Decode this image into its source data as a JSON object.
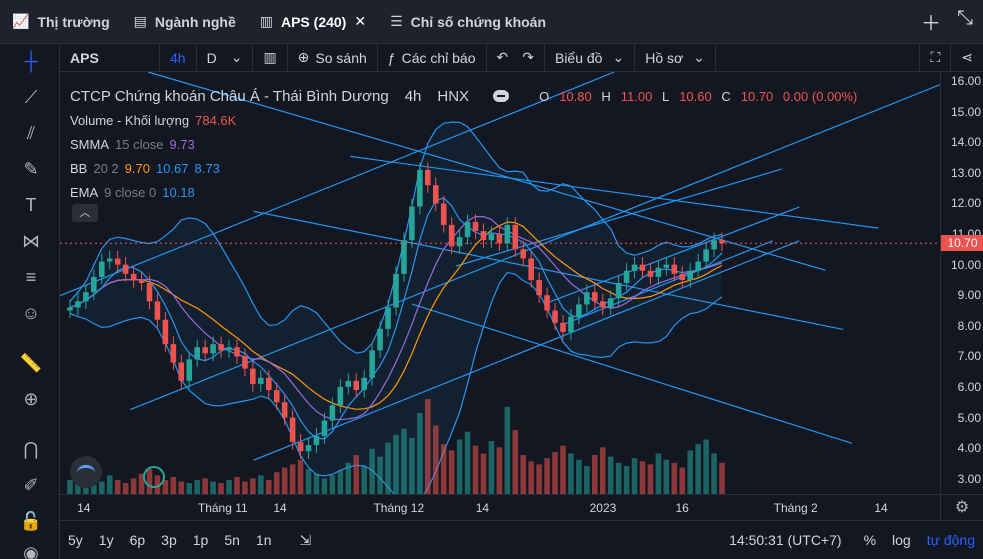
{
  "tabs": [
    {
      "label": "Thị trường",
      "icon": "chart-line-icon",
      "active": false
    },
    {
      "label": "Ngành nghề",
      "icon": "list-box-icon",
      "active": false
    },
    {
      "label": "APS (240)",
      "icon": "candles-icon",
      "active": true
    },
    {
      "label": "Chỉ số chứng khoán",
      "icon": "menu-icon",
      "active": false
    }
  ],
  "toolbar": {
    "symbol": "APS",
    "interval": "4h",
    "interval_alt": "D",
    "compare": "So sánh",
    "indicators": "Các chỉ báo",
    "chart_type": "Biểu đồ",
    "profile": "Hồ sơ"
  },
  "legend": {
    "name": "CTCP Chứng khoán Châu Á - Thái Bình Dương",
    "interval": "4h",
    "exchange": "HNX",
    "o_label": "O",
    "o": "10.80",
    "h_label": "H",
    "h": "11.00",
    "l_label": "L",
    "l": "10.60",
    "c_label": "C",
    "c": "10.70",
    "change": "0.00 (0.00%)",
    "volume_label": "Volume - Khối lượng",
    "volume": "784.6K",
    "smma_label": "SMMA",
    "smma_params": "15 close",
    "smma": "9.73",
    "bb_label": "BB",
    "bb_params": "20 2",
    "bb_mid": "9.70",
    "bb_up": "10.67",
    "bb_low": "8.73",
    "ema_label": "EMA",
    "ema_params": "9 close 0",
    "ema": "10.18"
  },
  "price_axis": {
    "ticks": [
      "16.00",
      "15.00",
      "14.00",
      "13.00",
      "12.00",
      "11.00",
      "10.00",
      "9.00",
      "8.00",
      "7.00",
      "6.00",
      "5.00",
      "4.00",
      "3.00"
    ],
    "last_price": "10.70"
  },
  "time_axis": {
    "ticks": [
      "14",
      "Tháng 11",
      "14",
      "Tháng 12",
      "14",
      "2023",
      "16",
      "Tháng 2",
      "14"
    ]
  },
  "bottom": {
    "ranges": [
      "5y",
      "1y",
      "6p",
      "3p",
      "1p",
      "5n",
      "1n"
    ],
    "clock": "14:50:31 (UTC+7)",
    "percent": "%",
    "log": "log",
    "auto": "tự động"
  },
  "chart_data": {
    "type": "candlestick",
    "ylim": [
      2.5,
      16.3
    ],
    "close": [
      8.6,
      8.8,
      9.1,
      9.6,
      10.1,
      10.2,
      10.0,
      9.7,
      9.5,
      9.4,
      8.8,
      8.2,
      7.4,
      6.8,
      6.2,
      6.9,
      7.3,
      7.1,
      7.4,
      7.2,
      7.3,
      7.0,
      6.6,
      6.1,
      6.3,
      5.9,
      5.5,
      5.0,
      4.2,
      3.9,
      4.1,
      4.4,
      4.9,
      5.4,
      6.0,
      6.2,
      5.9,
      6.3,
      7.2,
      7.9,
      8.6,
      9.7,
      10.8,
      11.9,
      13.1,
      12.6,
      12.0,
      11.3,
      10.6,
      10.9,
      11.4,
      11.1,
      10.8,
      11.0,
      10.7,
      11.3,
      10.5,
      10.2,
      9.5,
      9.0,
      8.5,
      8.1,
      7.8,
      8.3,
      8.7,
      9.1,
      8.8,
      8.6,
      8.9,
      9.4,
      9.8,
      10.0,
      9.8,
      9.6,
      9.9,
      10.0,
      9.7,
      9.5,
      9.8,
      10.1,
      10.5,
      10.8,
      10.7
    ],
    "volume": [
      0.9,
      1.1,
      1.4,
      1.0,
      0.8,
      1.2,
      0.9,
      0.7,
      1.0,
      1.3,
      1.6,
      1.2,
      0.9,
      1.1,
      0.8,
      0.7,
      0.9,
      1.0,
      0.8,
      0.7,
      0.9,
      1.1,
      0.8,
      1.0,
      1.2,
      0.9,
      1.4,
      1.7,
      1.9,
      2.2,
      1.6,
      1.3,
      1.0,
      1.2,
      1.5,
      2.0,
      2.5,
      1.8,
      2.9,
      2.4,
      3.3,
      3.8,
      4.2,
      3.6,
      5.2,
      6.1,
      4.4,
      3.2,
      2.8,
      3.5,
      4.0,
      3.1,
      2.6,
      3.4,
      3.0,
      5.6,
      4.1,
      2.5,
      2.1,
      1.9,
      2.3,
      2.7,
      3.1,
      2.6,
      2.2,
      1.8,
      2.5,
      3.0,
      2.4,
      2.0,
      1.8,
      2.3,
      2.1,
      1.9,
      2.6,
      2.2,
      2.0,
      1.7,
      2.8,
      3.2,
      3.5,
      2.6,
      2.0
    ]
  }
}
